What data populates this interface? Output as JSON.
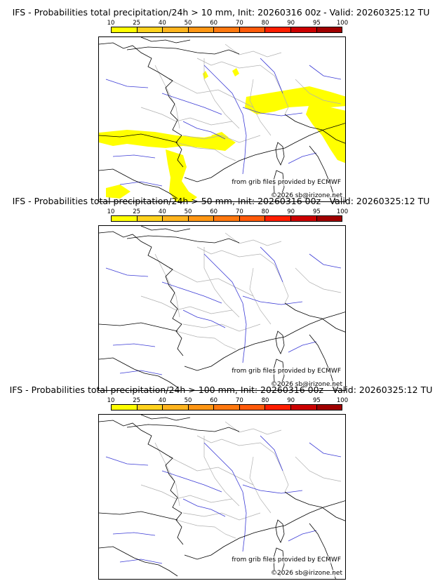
{
  "colorbar": {
    "ticks": [
      "10",
      "25",
      "40",
      "50",
      "60",
      "70",
      "80",
      "90",
      "95",
      "100"
    ],
    "colors": [
      "#ffff00",
      "#ffd21e",
      "#ffb41e",
      "#ff9614",
      "#ff780f",
      "#ff5a0a",
      "#ff1e00",
      "#cc0000",
      "#a00000",
      "#6e0000"
    ]
  },
  "panels": [
    {
      "title": "IFS - Probabilities total precipitation/24h > 10 mm, Init: 20260316 00z - Valid: 20260325:12 TU",
      "source_credit": "from grib files provided by ECMWF",
      "copyright": "©2026 sb@irizone.net",
      "precip_fill": "#ffff00",
      "has_precip_area": true
    },
    {
      "title": "IFS - Probabilities total precipitation/24h > 50 mm, Init: 20260316 00z - Valid: 20260325:12 TU",
      "source_credit": "from grib files provided by ECMWF",
      "copyright": "©2026 sb@irizone.net",
      "precip_fill": "#ffff00",
      "has_precip_area": false
    },
    {
      "title": "IFS - Probabilities total precipitation/24h > 100 mm, Init: 20260316 00z - Valid: 20260325:12 TU",
      "source_credit": "from grib files provided by ECMWF",
      "copyright": "©2026 sb@irizone.net",
      "precip_fill": "#ffff00",
      "has_precip_area": false
    }
  ]
}
